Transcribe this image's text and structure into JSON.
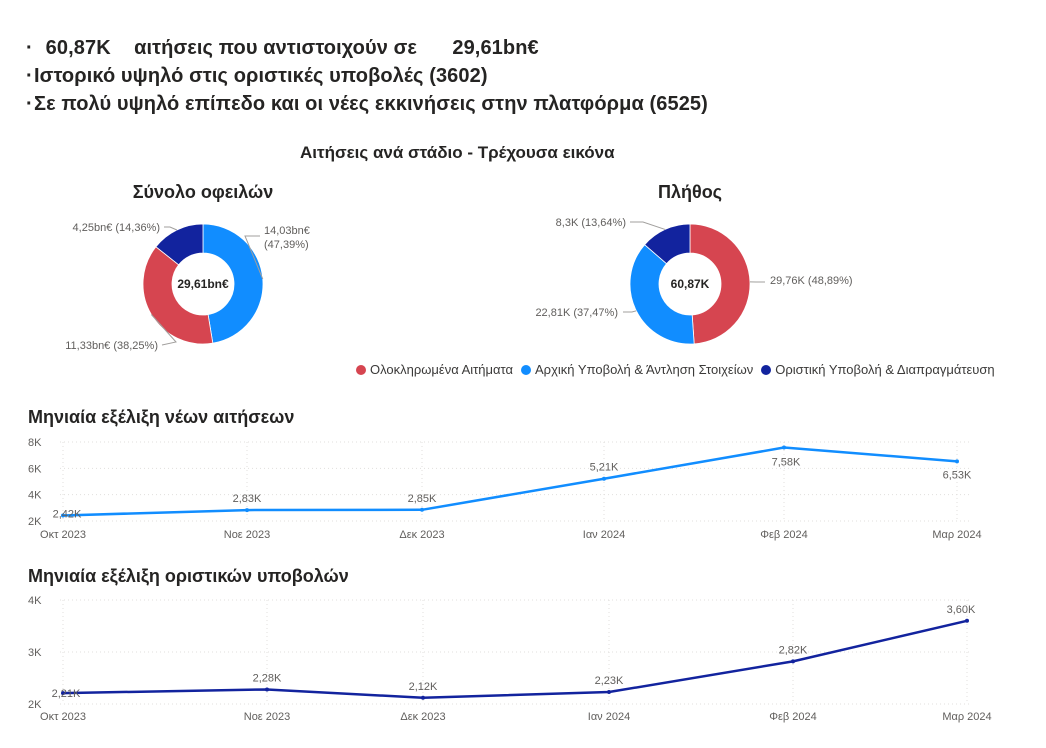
{
  "summary": {
    "line1_count": "60,87K",
    "line1_text": "αιτήσεις που αντιστοιχούν σε",
    "line1_amount": "29,61bn€",
    "line2": "Ιστορικό υψηλό στις οριστικές υποβολές (3602)",
    "line3": "Σε πολύ υψηλό επίπεδο και οι νέες εκκινήσεις στην πλατφόρμα (6525)",
    "bullet": "·"
  },
  "section_title": "Αιτήσεις ανά στάδιο - Τρέχουσα εικόνα",
  "legend": [
    {
      "label": "Ολοκληρωμένα Αιτήματα",
      "color": "#D64550"
    },
    {
      "label": "Αρχική Υποβολή & Άντληση Στοιχείων",
      "color": "#118DFF"
    },
    {
      "label": "Οριστική Υποβολή & Διαπραγμάτευση",
      "color": "#12239E"
    }
  ],
  "chart_data": [
    {
      "type": "pie",
      "title": "Σύνολο οφειλών",
      "center_label": "29,61bn€",
      "slices": [
        {
          "name": "Αρχική Υποβολή & Άντληση Στοιχείων",
          "value": 14.03,
          "label": "14,03bn€",
          "pct_label": "(47,39%)",
          "color": "#118DFF"
        },
        {
          "name": "Ολοκληρωμένα Αιτήματα",
          "value": 11.33,
          "label": "11,33bn€ (38,25%)",
          "color": "#D64550"
        },
        {
          "name": "Οριστική Υποβολή & Διαπραγμάτευση",
          "value": 4.25,
          "label": "4,25bn€ (14,36%)",
          "color": "#12239E"
        }
      ]
    },
    {
      "type": "pie",
      "title": "Πλήθος",
      "center_label": "60,87K",
      "slices": [
        {
          "name": "Ολοκληρωμένα Αιτήματα",
          "value": 29.76,
          "label": "29,76K (48,89%)",
          "color": "#D64550"
        },
        {
          "name": "Αρχική Υποβολή & Άντληση Στοιχείων",
          "value": 22.81,
          "label": "22,81K (37,47%)",
          "color": "#118DFF"
        },
        {
          "name": "Οριστική Υποβολή & Διαπραγμάτευση",
          "value": 8.3,
          "label": "8,3K (13,64%)",
          "color": "#12239E"
        }
      ]
    },
    {
      "type": "line",
      "title": "Μηνιαία εξέλιξη νέων αιτήσεων",
      "categories": [
        "Οκτ 2023",
        "Νοε 2023",
        "Δεκ 2023",
        "Ιαν 2024",
        "Φεβ 2024",
        "Μαρ 2024"
      ],
      "values": [
        2.42,
        2.83,
        2.85,
        5.21,
        7.58,
        6.53
      ],
      "data_labels": [
        "2,42K",
        "2,83K",
        "2,85K",
        "5,21K",
        "7,58K",
        "6,53K"
      ],
      "yticks": [
        "2K",
        "4K",
        "6K",
        "8K"
      ],
      "ylim": [
        2,
        8
      ],
      "grid": true,
      "color": "#118DFF"
    },
    {
      "type": "line",
      "title": "Μηνιαία εξέλιξη οριστικών υποβολών",
      "categories": [
        "Οκτ 2023",
        "Νοε 2023",
        "Δεκ 2023",
        "Ιαν 2024",
        "Φεβ 2024",
        "Μαρ 2024"
      ],
      "values": [
        2.21,
        2.28,
        2.12,
        2.23,
        2.82,
        3.6
      ],
      "data_labels": [
        "2,21K",
        "2,28K",
        "2,12K",
        "2,23K",
        "2,82K",
        "3,60K"
      ],
      "yticks": [
        "2K",
        "3K",
        "4K"
      ],
      "ylim": [
        2,
        4
      ],
      "grid": true,
      "color": "#12239E"
    }
  ]
}
